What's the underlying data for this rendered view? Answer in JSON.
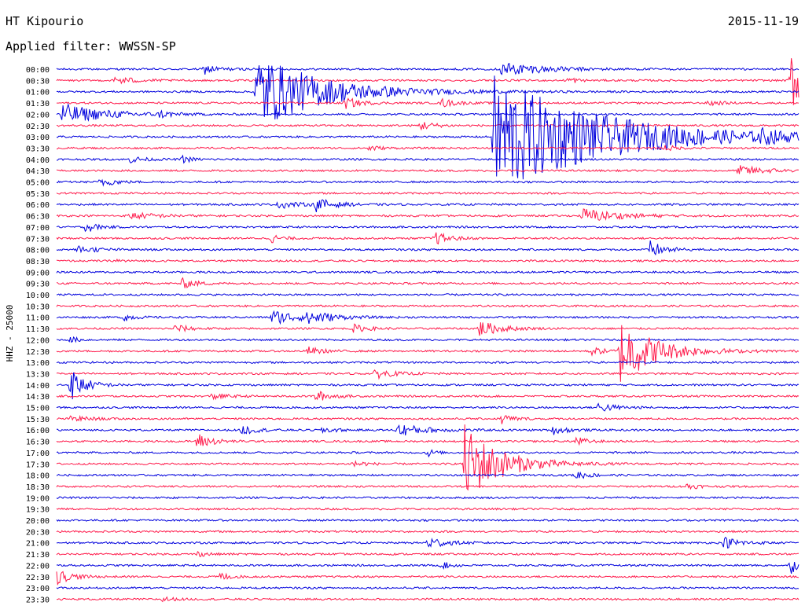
{
  "header": {
    "station": "HT Kipourio",
    "date": "2015-11-19",
    "filter": "Applied filter: WWSSN-SP"
  },
  "chart_data": {
    "type": "line",
    "title": "",
    "ylabel": "HHZ - 25000",
    "rows": [
      "00:00",
      "00:30",
      "01:00",
      "01:30",
      "02:00",
      "02:30",
      "03:00",
      "03:30",
      "04:00",
      "04:30",
      "05:00",
      "05:30",
      "06:00",
      "06:30",
      "07:00",
      "07:30",
      "08:00",
      "08:30",
      "09:00",
      "09:30",
      "10:00",
      "10:30",
      "11:00",
      "11:30",
      "12:00",
      "12:30",
      "13:00",
      "13:30",
      "14:00",
      "14:30",
      "15:00",
      "15:30",
      "16:00",
      "16:30",
      "17:00",
      "17:30",
      "18:00",
      "18:30",
      "19:00",
      "19:30",
      "20:00",
      "20:30",
      "21:00",
      "21:30",
      "22:00",
      "22:30",
      "23:00",
      "23:30"
    ],
    "colors": [
      "#0000dd",
      "#ff1a4b"
    ],
    "background_noise": 1.2,
    "events": [
      {
        "row": 0,
        "t": 0.2,
        "amp": 6,
        "dur": 0.04
      },
      {
        "row": 0,
        "t": 0.6,
        "amp": 9,
        "dur": 0.12
      },
      {
        "row": 1,
        "t": 0.08,
        "amp": 6,
        "dur": 0.05
      },
      {
        "row": 1,
        "t": 0.69,
        "amp": 6,
        "dur": 0.02
      },
      {
        "row": 1,
        "t": 0.99,
        "amp": 40,
        "dur": 0.04
      },
      {
        "row": 2,
        "t": 0.27,
        "amp": 50,
        "dur": 0.18
      },
      {
        "row": 3,
        "t": 0.39,
        "amp": 7,
        "dur": 0.04
      },
      {
        "row": 3,
        "t": 0.52,
        "amp": 5,
        "dur": 0.04
      },
      {
        "row": 3,
        "t": 0.88,
        "amp": 4,
        "dur": 0.03
      },
      {
        "row": 4,
        "t": 0.005,
        "amp": 14,
        "dur": 0.12
      },
      {
        "row": 4,
        "t": 0.14,
        "amp": 4,
        "dur": 0.03
      },
      {
        "row": 5,
        "t": 0.49,
        "amp": 6,
        "dur": 0.04
      },
      {
        "row": 6,
        "t": 0.59,
        "amp": 80,
        "dur": 0.3
      },
      {
        "row": 6,
        "t": 0.95,
        "amp": 6,
        "dur": 0.06
      },
      {
        "row": 7,
        "t": 0.42,
        "amp": 4,
        "dur": 0.03
      },
      {
        "row": 7,
        "t": 0.82,
        "amp": 4,
        "dur": 0.03
      },
      {
        "row": 8,
        "t": 0.1,
        "amp": 4,
        "dur": 0.04
      },
      {
        "row": 8,
        "t": 0.17,
        "amp": 4,
        "dur": 0.03
      },
      {
        "row": 9,
        "t": 0.92,
        "amp": 6,
        "dur": 0.08
      },
      {
        "row": 10,
        "t": 0.06,
        "amp": 6,
        "dur": 0.04
      },
      {
        "row": 12,
        "t": 0.3,
        "amp": 5,
        "dur": 0.05
      },
      {
        "row": 12,
        "t": 0.35,
        "amp": 8,
        "dur": 0.05
      },
      {
        "row": 13,
        "t": 0.1,
        "amp": 4,
        "dur": 0.08
      },
      {
        "row": 13,
        "t": 0.71,
        "amp": 9,
        "dur": 0.1
      },
      {
        "row": 14,
        "t": 0.04,
        "amp": 7,
        "dur": 0.03
      },
      {
        "row": 15,
        "t": 0.29,
        "amp": 5,
        "dur": 0.03
      },
      {
        "row": 15,
        "t": 0.51,
        "amp": 8,
        "dur": 0.04
      },
      {
        "row": 16,
        "t": 0.03,
        "amp": 4,
        "dur": 0.06
      },
      {
        "row": 16,
        "t": 0.8,
        "amp": 11,
        "dur": 0.04
      },
      {
        "row": 17,
        "t": 0.08,
        "amp": 3,
        "dur": 0.02
      },
      {
        "row": 19,
        "t": 0.17,
        "amp": 6,
        "dur": 0.04
      },
      {
        "row": 22,
        "t": 0.09,
        "amp": 5,
        "dur": 0.03
      },
      {
        "row": 22,
        "t": 0.29,
        "amp": 9,
        "dur": 0.09
      },
      {
        "row": 22,
        "t": 0.34,
        "amp": 9,
        "dur": 0.05
      },
      {
        "row": 23,
        "t": 0.16,
        "amp": 5,
        "dur": 0.04
      },
      {
        "row": 23,
        "t": 0.4,
        "amp": 5,
        "dur": 0.04
      },
      {
        "row": 23,
        "t": 0.57,
        "amp": 10,
        "dur": 0.06
      },
      {
        "row": 24,
        "t": 0.02,
        "amp": 4,
        "dur": 0.02
      },
      {
        "row": 25,
        "t": 0.34,
        "amp": 5,
        "dur": 0.04
      },
      {
        "row": 25,
        "t": 0.72,
        "amp": 5,
        "dur": 0.04
      },
      {
        "row": 25,
        "t": 0.76,
        "amp": 42,
        "dur": 0.1
      },
      {
        "row": 27,
        "t": 0.43,
        "amp": 6,
        "dur": 0.05
      },
      {
        "row": 28,
        "t": 0.02,
        "amp": 20,
        "dur": 0.04
      },
      {
        "row": 29,
        "t": 0.21,
        "amp": 4,
        "dur": 0.04
      },
      {
        "row": 29,
        "t": 0.35,
        "amp": 7,
        "dur": 0.04
      },
      {
        "row": 30,
        "t": 0.73,
        "amp": 6,
        "dur": 0.05
      },
      {
        "row": 31,
        "t": 0.02,
        "amp": 4,
        "dur": 0.05
      },
      {
        "row": 31,
        "t": 0.6,
        "amp": 7,
        "dur": 0.03
      },
      {
        "row": 32,
        "t": 0.25,
        "amp": 6,
        "dur": 0.04
      },
      {
        "row": 32,
        "t": 0.36,
        "amp": 5,
        "dur": 0.03
      },
      {
        "row": 32,
        "t": 0.46,
        "amp": 8,
        "dur": 0.08
      },
      {
        "row": 32,
        "t": 0.67,
        "amp": 5,
        "dur": 0.04
      },
      {
        "row": 33,
        "t": 0.19,
        "amp": 10,
        "dur": 0.04
      },
      {
        "row": 33,
        "t": 0.7,
        "amp": 6,
        "dur": 0.03
      },
      {
        "row": 34,
        "t": 0.5,
        "amp": 5,
        "dur": 0.02
      },
      {
        "row": 35,
        "t": 0.4,
        "amp": 5,
        "dur": 0.03
      },
      {
        "row": 35,
        "t": 0.55,
        "amp": 50,
        "dur": 0.1
      },
      {
        "row": 36,
        "t": 0.7,
        "amp": 5,
        "dur": 0.04
      },
      {
        "row": 37,
        "t": 0.85,
        "amp": 4,
        "dur": 0.03
      },
      {
        "row": 42,
        "t": 0.5,
        "amp": 8,
        "dur": 0.05
      },
      {
        "row": 42,
        "t": 0.9,
        "amp": 7,
        "dur": 0.05
      },
      {
        "row": 43,
        "t": 0.19,
        "amp": 3,
        "dur": 0.03
      },
      {
        "row": 44,
        "t": 0.52,
        "amp": 4,
        "dur": 0.03
      },
      {
        "row": 44,
        "t": 0.99,
        "amp": 10,
        "dur": 0.02
      },
      {
        "row": 45,
        "t": 0.0,
        "amp": 10,
        "dur": 0.04
      },
      {
        "row": 45,
        "t": 0.22,
        "amp": 5,
        "dur": 0.03
      },
      {
        "row": 47,
        "t": 0.14,
        "amp": 4,
        "dur": 0.03
      }
    ]
  }
}
